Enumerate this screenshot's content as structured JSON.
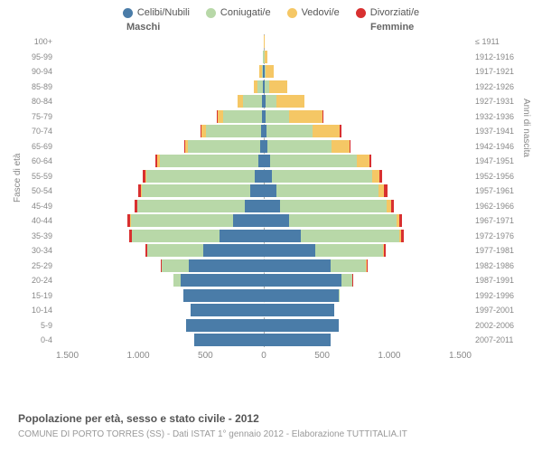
{
  "legend": [
    {
      "label": "Celibi/Nubili",
      "color": "#4a7ca8"
    },
    {
      "label": "Coniugati/e",
      "color": "#b8d8a8"
    },
    {
      "label": "Vedovi/e",
      "color": "#f5c765"
    },
    {
      "label": "Divorziati/e",
      "color": "#d83030"
    }
  ],
  "col_headers": {
    "m": "Maschi",
    "f": "Femmine"
  },
  "ylabels": {
    "left": "Fasce di età",
    "right": "Anni di nascita"
  },
  "xticks": [
    "1.500",
    "1.000",
    "500",
    "0",
    "500",
    "1.000",
    "1.500"
  ],
  "xmax": 1500,
  "title": "Popolazione per età, sesso e stato civile - 2012",
  "subtitle": "COMUNE DI PORTO TORRES (SS) - Dati ISTAT 1° gennaio 2012 - Elaborazione TUTTITALIA.IT",
  "age_labels": [
    "100+",
    "95-99",
    "90-94",
    "85-89",
    "80-84",
    "75-79",
    "70-74",
    "65-69",
    "60-64",
    "55-59",
    "50-54",
    "45-49",
    "40-44",
    "35-39",
    "30-34",
    "25-29",
    "20-24",
    "15-19",
    "10-14",
    "5-9",
    "0-4"
  ],
  "birth_labels": [
    "≤ 1911",
    "1912-1916",
    "1917-1921",
    "1922-1926",
    "1927-1931",
    "1932-1936",
    "1937-1941",
    "1942-1946",
    "1947-1951",
    "1952-1956",
    "1957-1961",
    "1962-1966",
    "1967-1971",
    "1972-1976",
    "1977-1981",
    "1982-1986",
    "1987-1991",
    "1992-1996",
    "1997-2001",
    "2002-2006",
    "2007-2011"
  ],
  "rows": [
    {
      "m": [
        0,
        0,
        2,
        0
      ],
      "f": [
        0,
        0,
        6,
        0
      ]
    },
    {
      "m": [
        2,
        2,
        5,
        0
      ],
      "f": [
        2,
        2,
        20,
        0
      ]
    },
    {
      "m": [
        5,
        10,
        16,
        0
      ],
      "f": [
        5,
        7,
        60,
        0
      ]
    },
    {
      "m": [
        8,
        40,
        26,
        0
      ],
      "f": [
        8,
        30,
        130,
        0
      ]
    },
    {
      "m": [
        10,
        140,
        40,
        0
      ],
      "f": [
        12,
        80,
        200,
        0
      ]
    },
    {
      "m": [
        15,
        280,
        40,
        4
      ],
      "f": [
        15,
        170,
        240,
        4
      ]
    },
    {
      "m": [
        18,
        400,
        30,
        6
      ],
      "f": [
        20,
        330,
        200,
        8
      ]
    },
    {
      "m": [
        25,
        520,
        20,
        8
      ],
      "f": [
        28,
        460,
        130,
        10
      ]
    },
    {
      "m": [
        40,
        710,
        18,
        12
      ],
      "f": [
        45,
        630,
        85,
        15
      ]
    },
    {
      "m": [
        65,
        780,
        10,
        16
      ],
      "f": [
        60,
        720,
        55,
        18
      ]
    },
    {
      "m": [
        100,
        780,
        8,
        20
      ],
      "f": [
        90,
        740,
        40,
        22
      ]
    },
    {
      "m": [
        140,
        770,
        6,
        20
      ],
      "f": [
        120,
        770,
        28,
        22
      ]
    },
    {
      "m": [
        220,
        740,
        5,
        18
      ],
      "f": [
        180,
        780,
        20,
        20
      ]
    },
    {
      "m": [
        320,
        630,
        4,
        15
      ],
      "f": [
        270,
        710,
        14,
        18
      ]
    },
    {
      "m": [
        440,
        400,
        2,
        10
      ],
      "f": [
        370,
        490,
        8,
        12
      ]
    },
    {
      "m": [
        540,
        200,
        0,
        6
      ],
      "f": [
        480,
        260,
        4,
        8
      ]
    },
    {
      "m": [
        600,
        50,
        0,
        2
      ],
      "f": [
        560,
        80,
        0,
        3
      ]
    },
    {
      "m": [
        580,
        0,
        0,
        0
      ],
      "f": [
        540,
        3,
        0,
        0
      ]
    },
    {
      "m": [
        530,
        0,
        0,
        0
      ],
      "f": [
        510,
        0,
        0,
        0
      ]
    },
    {
      "m": [
        560,
        0,
        0,
        0
      ],
      "f": [
        540,
        0,
        0,
        0
      ]
    },
    {
      "m": [
        500,
        0,
        0,
        0
      ],
      "f": [
        480,
        0,
        0,
        0
      ]
    }
  ]
}
